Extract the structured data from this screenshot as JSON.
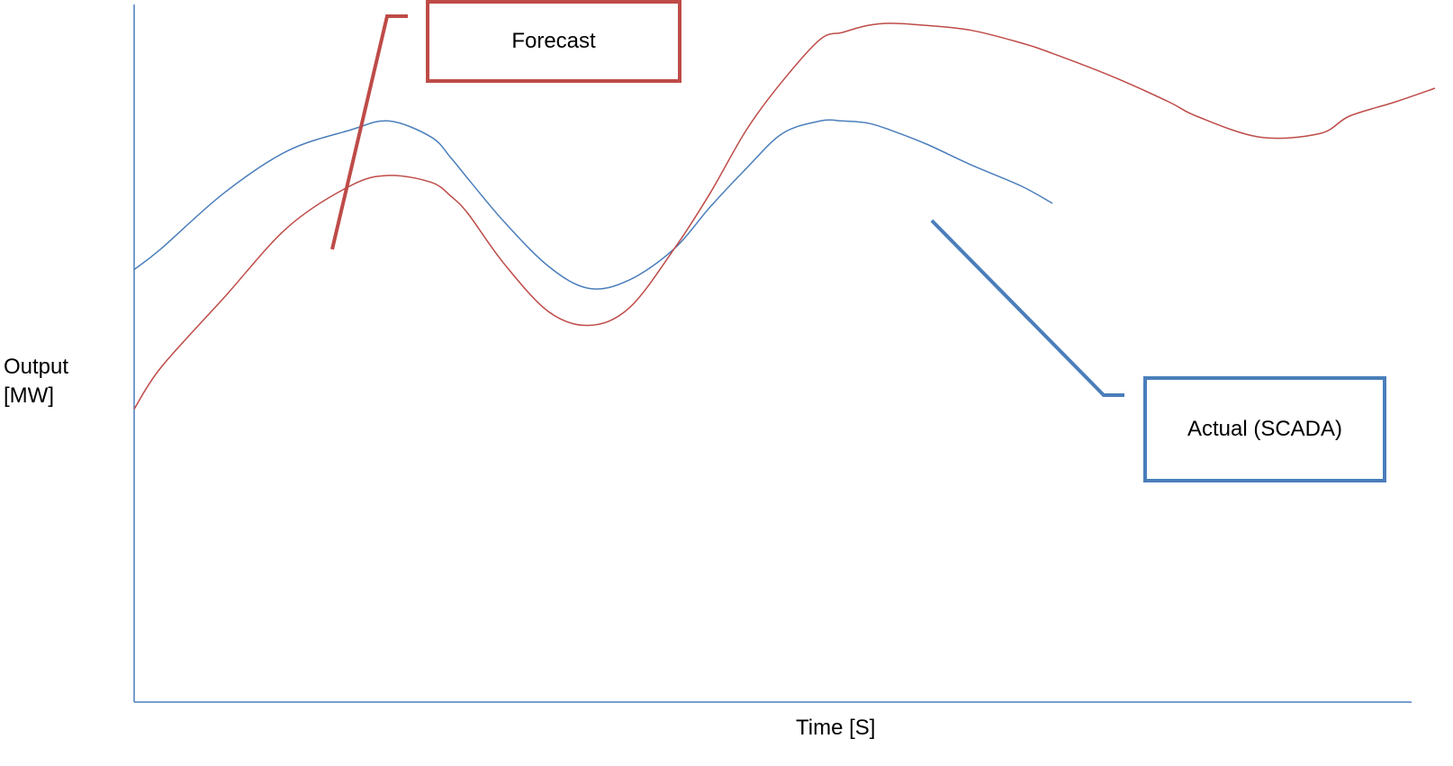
{
  "chart_data": {
    "type": "line",
    "xlabel": "Time [S]",
    "ylabel": "Output [MW]",
    "grid": false,
    "x": [
      0,
      30,
      100,
      170,
      240,
      283,
      330,
      352,
      371,
      410,
      460,
      505,
      550,
      600,
      640,
      680,
      720,
      762,
      787,
      815,
      840,
      880,
      930,
      985,
      1020,
      1090,
      1150,
      1180,
      1250,
      1317,
      1350,
      1400,
      1445
    ],
    "series": [
      {
        "name": "Actual (SCADA)",
        "color": "#4a7ebb",
        "values": [
          62,
          65,
          73,
          79,
          82,
          83.3,
          81,
          78,
          75,
          69,
          62.5,
          59.3,
          60.5,
          65,
          71,
          76.5,
          81.5,
          83.3,
          83.3,
          83,
          82,
          80,
          77,
          74,
          71.5,
          null,
          null,
          null,
          null,
          null,
          null,
          null,
          null
        ]
      },
      {
        "name": "Forecast",
        "color": "#be4b48",
        "values": [
          42,
          48,
          58,
          68,
          74,
          75.5,
          74.5,
          72.5,
          70,
          63,
          56,
          54,
          56.5,
          65,
          73,
          82,
          89,
          95,
          96,
          97,
          97.3,
          97,
          96.3,
          94.5,
          93,
          89.5,
          86,
          84,
          81,
          81.5,
          84,
          86,
          88
        ]
      }
    ],
    "annotations": [
      {
        "text": "Forecast",
        "series": "Forecast"
      },
      {
        "text": "Actual (SCADA)",
        "series": "Actual (SCADA)"
      }
    ]
  }
}
